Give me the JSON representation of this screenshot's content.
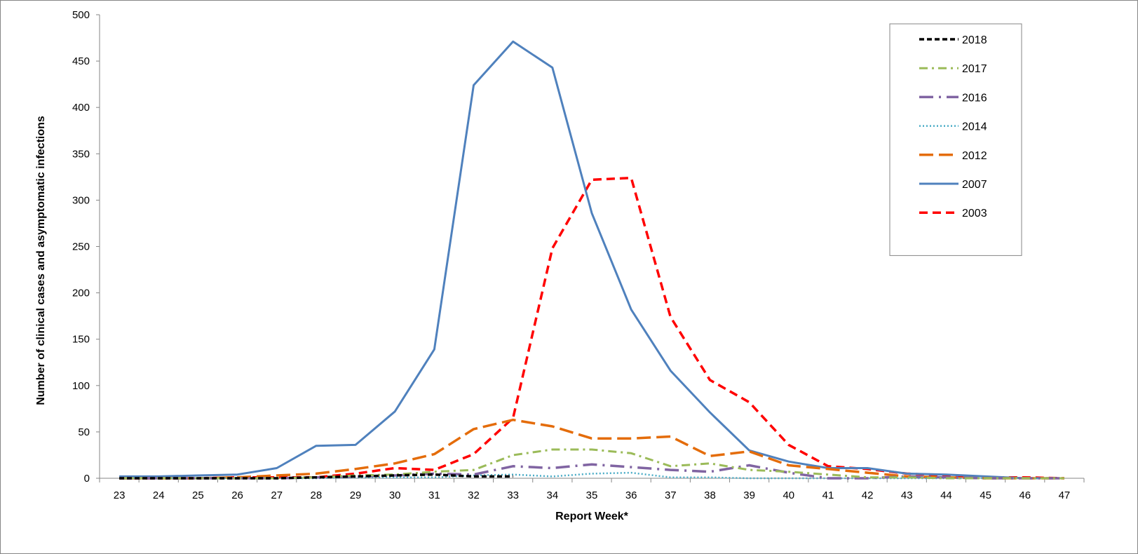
{
  "chart_data": {
    "type": "line",
    "title": "",
    "xlabel": "Report Week*",
    "ylabel": "Number of clinical cases and asymptomatic infections",
    "ylim": [
      0,
      500
    ],
    "yticks": [
      0,
      50,
      100,
      150,
      200,
      250,
      300,
      350,
      400,
      450,
      500
    ],
    "x": [
      23,
      24,
      25,
      26,
      27,
      28,
      29,
      30,
      31,
      32,
      33,
      34,
      35,
      36,
      37,
      38,
      39,
      40,
      41,
      42,
      43,
      44,
      45,
      46,
      47
    ],
    "grid": false,
    "legend_position": "top-right",
    "series": [
      {
        "name": "2018",
        "color": "#000000",
        "dash": "dash-bold",
        "values": [
          0,
          0,
          0,
          0,
          0,
          1,
          2,
          3,
          4,
          2,
          2,
          null,
          null,
          null,
          null,
          null,
          null,
          null,
          null,
          null,
          null,
          null,
          null,
          null,
          null
        ]
      },
      {
        "name": "2017",
        "color": "#9BBB59",
        "dash": "dash-dot",
        "values": [
          0,
          0,
          0,
          0,
          0,
          1,
          3,
          4,
          7,
          9,
          25,
          31,
          31,
          27,
          13,
          16,
          9,
          7,
          4,
          1,
          1,
          0,
          0,
          0,
          0
        ]
      },
      {
        "name": "2016",
        "color": "#8064A2",
        "dash": "long-dash-dot",
        "values": [
          0,
          0,
          0,
          0,
          0,
          1,
          2,
          3,
          5,
          4,
          13,
          11,
          15,
          12,
          9,
          7,
          14,
          6,
          0,
          0,
          2,
          1,
          0,
          0,
          0
        ]
      },
      {
        "name": "2014",
        "color": "#4BACC6",
        "dash": "dot",
        "values": [
          0,
          0,
          0,
          0,
          0,
          0,
          1,
          1,
          1,
          3,
          4,
          2,
          5,
          6,
          1,
          1,
          0,
          0,
          0,
          0,
          0,
          0,
          0,
          0,
          0
        ]
      },
      {
        "name": "2012",
        "color": "#E46C0A",
        "dash": "long-dash",
        "values": [
          0,
          0,
          0,
          1,
          3,
          5,
          10,
          16,
          26,
          53,
          63,
          56,
          43,
          43,
          45,
          24,
          29,
          14,
          10,
          6,
          2,
          1,
          0,
          0,
          0
        ]
      },
      {
        "name": "2007",
        "color": "#4F81BD",
        "dash": "solid",
        "values": [
          2,
          2,
          3,
          4,
          11,
          35,
          36,
          72,
          139,
          424,
          471,
          443,
          286,
          182,
          116,
          71,
          30,
          18,
          11,
          11,
          5,
          4,
          2,
          0,
          0
        ]
      },
      {
        "name": "2003",
        "color": "#FF0000",
        "dash": "dash",
        "values": [
          0,
          0,
          0,
          1,
          1,
          1,
          5,
          11,
          9,
          26,
          65,
          248,
          322,
          324,
          174,
          106,
          82,
          36,
          13,
          10,
          5,
          3,
          1,
          1,
          0
        ]
      }
    ]
  }
}
